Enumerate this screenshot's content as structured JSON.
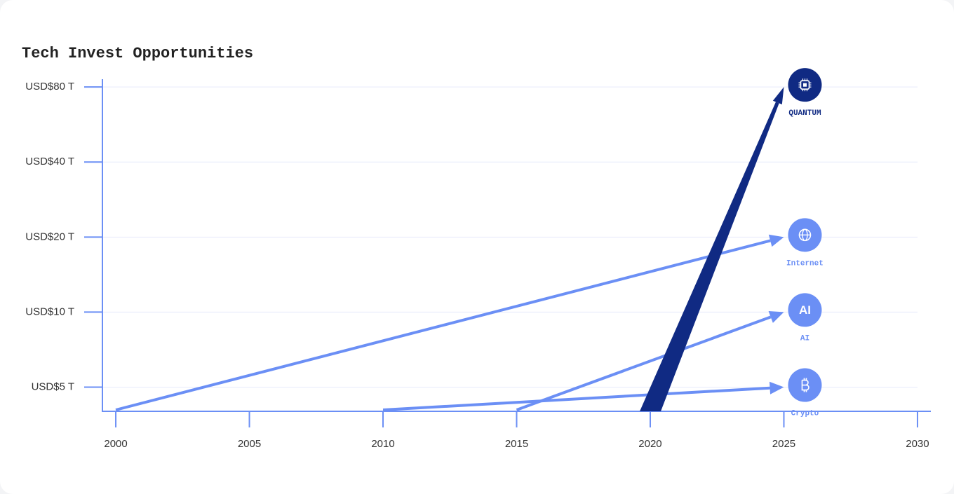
{
  "chart_data": {
    "type": "arrow",
    "title": "Tech Invest Opportunities",
    "log_scale_y": true,
    "grid": true,
    "axis_color": "#6b8ff5",
    "xlim": [
      1999.5,
      2030.5
    ],
    "xticks": [
      2000,
      2005,
      2010,
      2015,
      2020,
      2025,
      2030
    ],
    "ylim": [
      4,
      86
    ],
    "yticks": [
      {
        "value": 5,
        "label": "USD$5 T"
      },
      {
        "value": 10,
        "label": "USD$10 T"
      },
      {
        "value": 20,
        "label": "USD$20 T"
      },
      {
        "value": 40,
        "label": "USD$40 T"
      },
      {
        "value": 80,
        "label": "USD$80 T"
      }
    ],
    "series": [
      {
        "name": "Internet",
        "color": "#6b8ff5",
        "x": [
          2000,
          2025
        ],
        "values": [
          4,
          20
        ]
      },
      {
        "name": "Crypto",
        "color": "#6b8ff5",
        "x": [
          2010,
          2025
        ],
        "values": [
          4,
          5
        ]
      },
      {
        "name": "AI",
        "color": "#6b8ff5",
        "x": [
          2015,
          2025
        ],
        "values": [
          4,
          10
        ],
        "badge": "AI"
      },
      {
        "name": "QUANTUM",
        "color": "#102a83",
        "x": [
          2020,
          2025
        ],
        "values": [
          4,
          80
        ]
      }
    ]
  }
}
